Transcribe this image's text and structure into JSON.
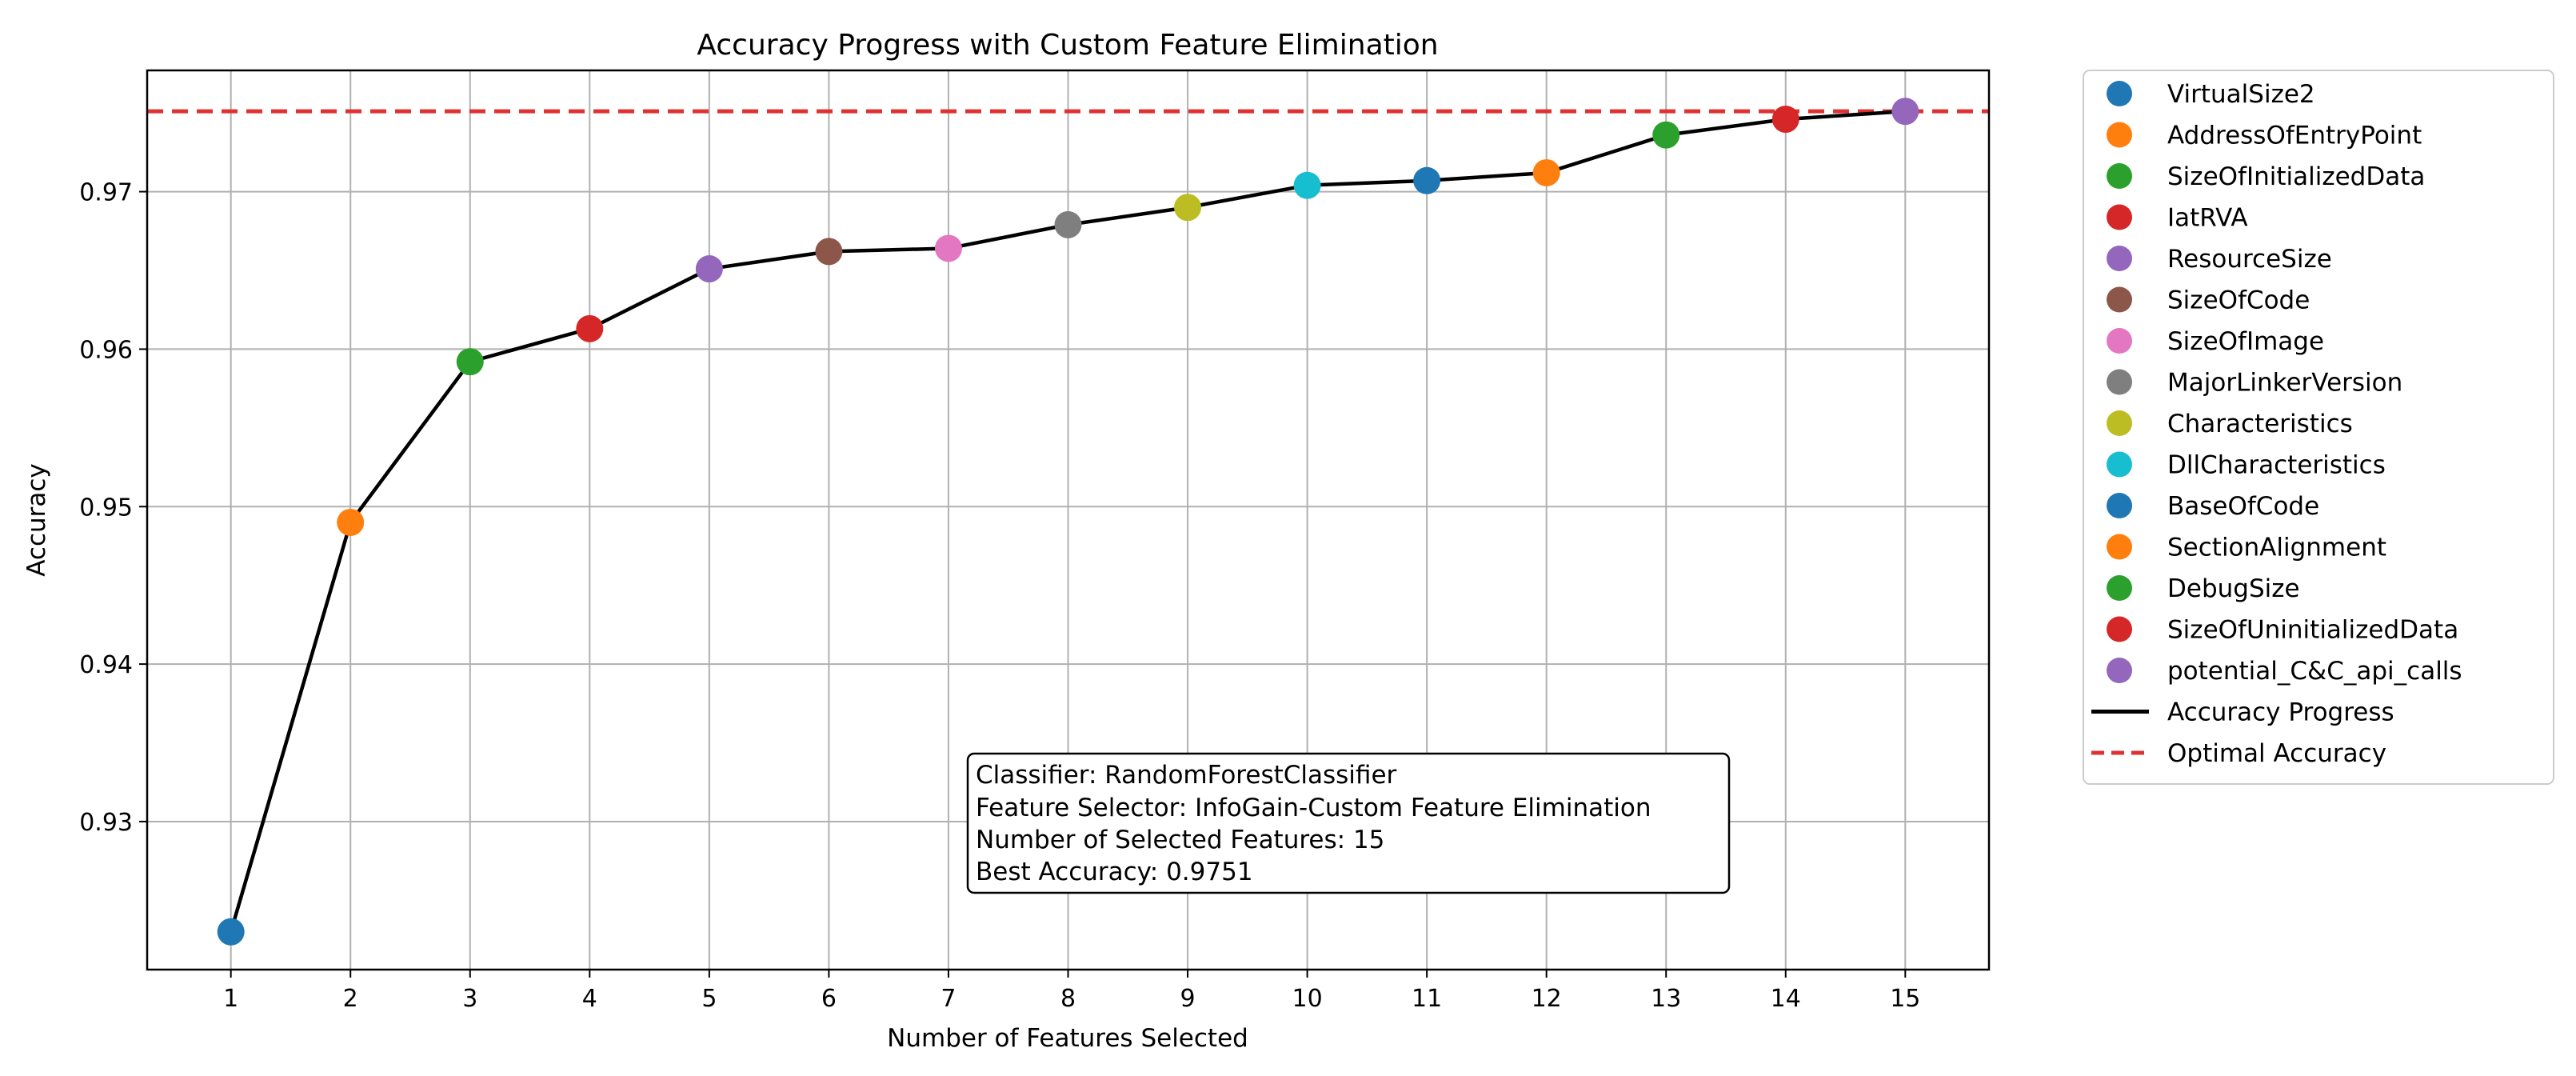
{
  "chart_data": {
    "type": "scatter",
    "title": "Accuracy Progress with Custom Feature Elimination",
    "xlabel": "Number of Features Selected",
    "ylabel": "Accuracy",
    "x": [
      1,
      2,
      3,
      4,
      5,
      6,
      7,
      8,
      9,
      10,
      11,
      12,
      13,
      14,
      15
    ],
    "xticks": [
      "1",
      "2",
      "3",
      "4",
      "5",
      "6",
      "7",
      "8",
      "9",
      "10",
      "11",
      "12",
      "13",
      "14",
      "15"
    ],
    "yticks": [
      0.93,
      0.94,
      0.95,
      0.96,
      0.97
    ],
    "ytick_labels": [
      "0.93",
      "0.94",
      "0.95",
      "0.96",
      "0.97"
    ],
    "xlim": [
      0.3,
      15.7
    ],
    "ylim": [
      0.9206,
      0.9777
    ],
    "grid": true,
    "legend_position": "outside-right",
    "points": [
      {
        "name": "VirtualSize2",
        "x": 1,
        "y": 0.923,
        "color": "#1f77b4"
      },
      {
        "name": "AddressOfEntryPoint",
        "x": 2,
        "y": 0.949,
        "color": "#ff7f0e"
      },
      {
        "name": "SizeOfInitializedData",
        "x": 3,
        "y": 0.9592,
        "color": "#2ca02c"
      },
      {
        "name": "IatRVA",
        "x": 4,
        "y": 0.9613,
        "color": "#d62728"
      },
      {
        "name": "ResourceSize",
        "x": 5,
        "y": 0.9651,
        "color": "#9467bd"
      },
      {
        "name": "SizeOfCode",
        "x": 6,
        "y": 0.9662,
        "color": "#8c564b"
      },
      {
        "name": "SizeOfImage",
        "x": 7,
        "y": 0.9664,
        "color": "#e377c2"
      },
      {
        "name": "MajorLinkerVersion",
        "x": 8,
        "y": 0.9679,
        "color": "#7f7f7f"
      },
      {
        "name": "Characteristics",
        "x": 9,
        "y": 0.969,
        "color": "#bcbd22"
      },
      {
        "name": "DllCharacteristics",
        "x": 10,
        "y": 0.9704,
        "color": "#17becf"
      },
      {
        "name": "BaseOfCode",
        "x": 11,
        "y": 0.9707,
        "color": "#1f77b4"
      },
      {
        "name": "SectionAlignment",
        "x": 12,
        "y": 0.9712,
        "color": "#ff7f0e"
      },
      {
        "name": "DebugSize",
        "x": 13,
        "y": 0.9736,
        "color": "#2ca02c"
      },
      {
        "name": "SizeOfUninitializedData",
        "x": 14,
        "y": 0.9746,
        "color": "#d62728"
      },
      {
        "name": "potential_C&C_api_calls",
        "x": 15,
        "y": 0.9751,
        "color": "#9467bd"
      }
    ],
    "series": [
      {
        "name": "Accuracy Progress",
        "kind": "line",
        "color": "#000000",
        "values": [
          0.923,
          0.949,
          0.9592,
          0.9613,
          0.9651,
          0.9662,
          0.9664,
          0.9679,
          0.969,
          0.9704,
          0.9707,
          0.9712,
          0.9736,
          0.9746,
          0.9751
        ]
      },
      {
        "name": "Optimal Accuracy",
        "kind": "hline-dashed",
        "color": "#e03131",
        "value": 0.9751
      }
    ],
    "annotation": [
      "Classifier: RandomForestClassifier",
      "Feature Selector: InfoGain-Custom Feature Elimination",
      "Number of Selected Features: 15",
      "Best Accuracy: 0.9751"
    ]
  }
}
